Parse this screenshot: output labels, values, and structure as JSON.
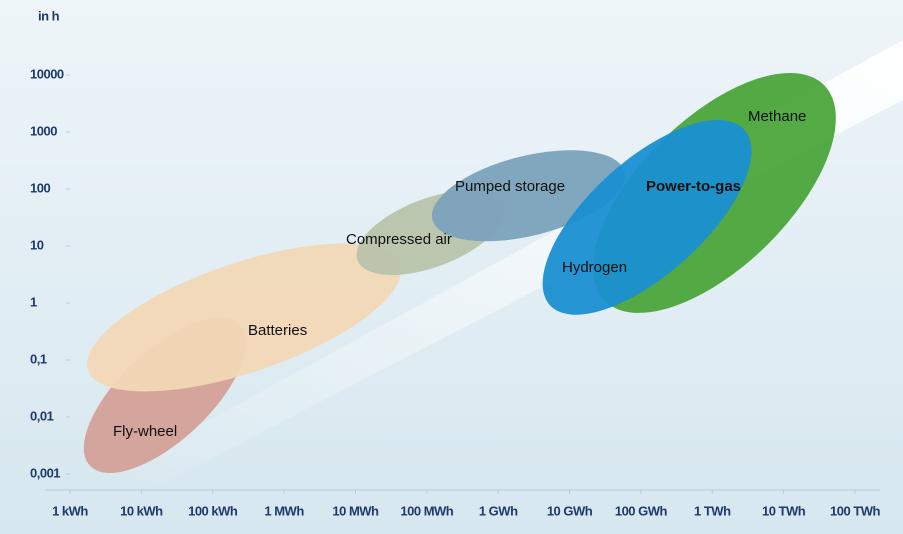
{
  "chart_data": {
    "type": "ellipse",
    "y_label": "in h",
    "xscale": "log",
    "yscale": "log",
    "xlim": [
      1,
      100000000000
    ],
    "ylim": [
      0.001,
      10000
    ],
    "xticks": [
      {
        "value": 1,
        "label": "1 kWh"
      },
      {
        "value": 10,
        "label": "10 kWh"
      },
      {
        "value": 100,
        "label": "100 kWh"
      },
      {
        "value": 1000,
        "label": "1 MWh"
      },
      {
        "value": 10000,
        "label": "10 MWh"
      },
      {
        "value": 100000,
        "label": "100 MWh"
      },
      {
        "value": 1000000,
        "label": "1 GWh"
      },
      {
        "value": 10000000,
        "label": "10 GWh"
      },
      {
        "value": 100000000,
        "label": "100 GWh"
      },
      {
        "value": 1000000000,
        "label": "1 TWh"
      },
      {
        "value": 10000000000,
        "label": "10 TWh"
      },
      {
        "value": 100000000000,
        "label": "100 TWh"
      }
    ],
    "yticks": [
      {
        "value": 0.001,
        "label": "0,001"
      },
      {
        "value": 0.01,
        "label": "0,01"
      },
      {
        "value": 0.1,
        "label": "0,1"
      },
      1,
      10,
      100,
      1000,
      10000
    ],
    "regions": [
      {
        "name": "Fly-wheel",
        "color": "#d4a197",
        "x": [
          1.9,
          240
        ],
        "y": [
          0.0014,
          0.41
        ],
        "width": 0.79
      },
      {
        "name": "Batteries",
        "color": "#f1d8b5",
        "x": [
          1.8,
          42000
        ],
        "y": [
          0.066,
          4.7
        ],
        "width": 0.96
      },
      {
        "name": "Compressed air",
        "color": "#b8c3ab",
        "x": [
          10700,
          1200000
        ],
        "y": [
          5.6,
          52
        ],
        "width": 0.6
      },
      {
        "name": "Pumped storage",
        "color": "#7ba2bc",
        "x": [
          120000,
          59000000
        ],
        "y": [
          29,
          200
        ],
        "width": 0.7
      },
      {
        "name": "Methane",
        "color": "#4ba53a",
        "x": [
          31000000,
          37000000000
        ],
        "y": [
          1.1,
          6600
        ],
        "width": 1.3
      },
      {
        "name": "Hydrogen",
        "color": "#1a8fd1",
        "x": [
          5300000,
          2800000000
        ],
        "y": [
          0.92,
          1100
        ],
        "width": 1.0
      }
    ],
    "annotation": "Power-to-gas"
  }
}
